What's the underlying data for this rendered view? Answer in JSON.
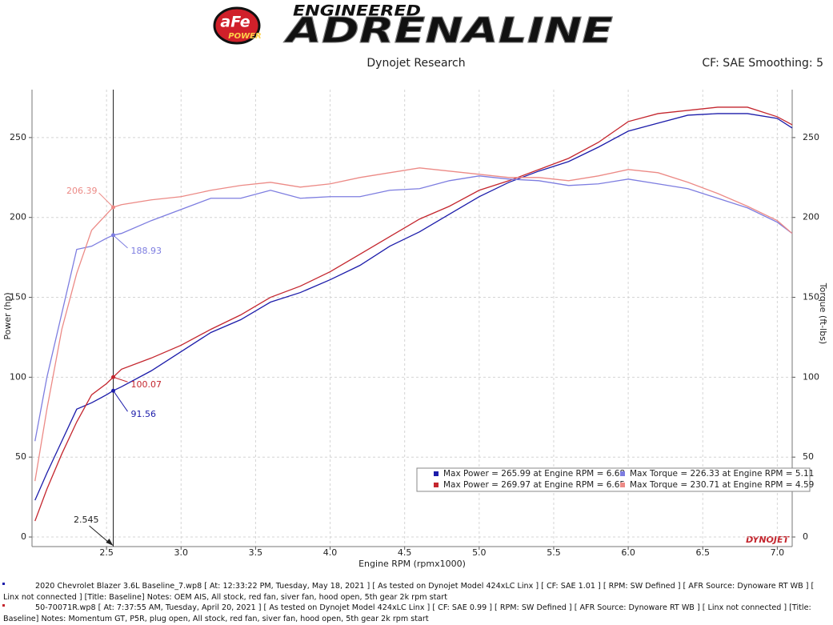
{
  "logo": {
    "brand": "aFe",
    "sub": "POWER",
    "tagline": "ENGINEERED",
    "title": "ADRENALINE"
  },
  "chart_data": {
    "type": "line",
    "subtitle": "Dynojet Research",
    "settings_text": "CF: SAE Smoothing: 5",
    "xlabel": "Engine RPM (rpmx1000)",
    "ylabel": "Power (hp)",
    "y2label": "Torque (ft-lbs)",
    "watermark": "DYNOJET",
    "xlim": [
      2.0,
      7.1
    ],
    "xticks": [
      2.5,
      {
        "value": 3,
        "label": "3.0"
      },
      3.5,
      {
        "value": 4,
        "label": "4.0"
      },
      4.5,
      {
        "value": 5,
        "label": "5.0"
      },
      5.5,
      {
        "value": 6,
        "label": "6.0"
      },
      6.5,
      {
        "value": 7,
        "label": "7.0"
      }
    ],
    "ylim": [
      -6,
      280
    ],
    "yticks": [
      0,
      50,
      100,
      150,
      200,
      250
    ],
    "y2lim": [
      -6,
      280
    ],
    "y2ticks": [
      0,
      50,
      100,
      150,
      200,
      250
    ],
    "grid": true,
    "cursor_x": 2.545,
    "x": [
      2.02,
      2.1,
      2.2,
      2.3,
      2.4,
      2.5,
      2.545,
      2.6,
      2.8,
      3.0,
      3.2,
      3.4,
      3.6,
      3.8,
      4.0,
      4.2,
      4.4,
      4.6,
      4.8,
      5.0,
      5.2,
      5.4,
      5.6,
      5.8,
      6.0,
      6.2,
      6.4,
      6.6,
      6.8,
      7.0,
      7.1
    ],
    "series": [
      {
        "name": "Max Power = 265.99 at Engine RPM = 6.68",
        "color": "#1c1caa",
        "values": [
          23,
          40,
          60,
          80,
          84,
          89,
          91.56,
          94,
          104,
          116,
          128,
          136,
          147,
          153,
          161,
          170,
          182,
          191,
          202,
          213,
          222,
          229,
          235,
          244,
          254,
          259,
          264,
          265,
          265,
          262,
          256
        ]
      },
      {
        "name": "Max Power = 269.97 at Engine RPM = 6.65",
        "color": "#c4262e",
        "values": [
          10,
          30,
          52,
          72,
          89,
          96,
          100.07,
          105,
          112,
          120,
          130,
          139,
          150,
          157,
          166,
          177,
          188,
          199,
          207,
          217,
          223,
          230,
          237,
          247,
          260,
          265,
          267,
          269,
          269,
          263,
          258
        ]
      },
      {
        "name": "Max Torque = 226.33 at Engine RPM = 5.11",
        "color": "#7d7de0",
        "axis": "y2",
        "values": [
          60,
          100,
          140,
          180,
          182,
          187,
          188.93,
          190,
          198,
          205,
          212,
          212,
          217,
          212,
          213,
          213,
          217,
          218,
          223,
          226,
          224,
          223,
          220,
          221,
          224,
          221,
          218,
          212,
          206,
          197,
          190
        ]
      },
      {
        "name": "Max Torque = 230.71 at Engine RPM = 4.59",
        "color": "#ec8a86",
        "axis": "y2",
        "values": [
          35,
          80,
          130,
          165,
          192,
          202,
          206.39,
          208,
          211,
          213,
          217,
          220,
          222,
          219,
          221,
          225,
          228,
          231,
          229,
          227,
          225,
          225,
          223,
          226,
          230,
          228,
          222,
          215,
          207,
          198,
          190
        ]
      }
    ],
    "footer_notes": [
      "2020 Chevrolet Blazer 3.6L Baseline_7.wp8 [ At: 12:33:22 PM, Tuesday, May 18, 2021 ] [ As tested on Dynojet Model 424xLC Linx ] [ CF: SAE 1.01 ] [ RPM: SW Defined ] [ AFR Source: Dynoware RT WB ] [ Linx not connected ] [Title: Baseline]  Notes: OEM AIS, All stock, red fan, siver fan, hood open, 5th gear 2k rpm start",
      "50-70071R.wp8 [ At: 7:37:55 AM, Tuesday, April 20, 2021 ] [ As tested on Dynojet Model 424xLC Linx ] [ CF: SAE 0.99 ] [ RPM: SW Defined ] [ AFR Source: Dynoware RT WB ] [ Linx not connected ] [Title: Baseline]  Notes: Momentum GT, P5R, plug open, All stock, red fan, siver fan, hood open, 5th gear 2k rpm start"
    ]
  }
}
